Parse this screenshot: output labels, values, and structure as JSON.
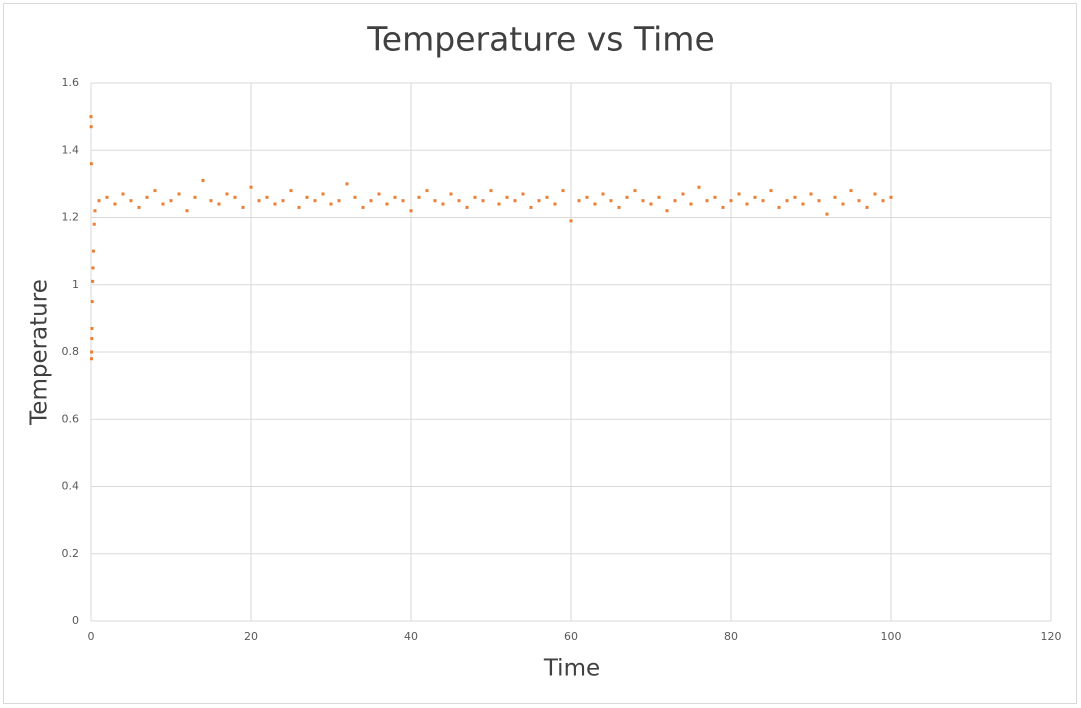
{
  "chart_data": {
    "type": "scatter",
    "title": "Temperature vs Time",
    "x_label": "Time",
    "y_label": "Temperature",
    "xlim": [
      0,
      120
    ],
    "xticks": [
      0,
      20,
      40,
      60,
      80,
      100,
      120
    ],
    "ylim": [
      0,
      1.6
    ],
    "yticks": [
      0,
      0.2,
      0.4,
      0.6,
      0.8,
      1,
      1.2,
      1.4,
      1.6
    ],
    "grid": true,
    "color": "#ed7d31",
    "x": [
      0,
      0.02,
      0.04,
      0.06,
      0.08,
      0.1,
      0.12,
      0.15,
      0.2,
      0.25,
      0.3,
      0.4,
      0.5,
      1,
      2,
      3,
      4,
      5,
      6,
      7,
      8,
      9,
      10,
      11,
      12,
      13,
      14,
      15,
      16,
      17,
      18,
      19,
      20,
      21,
      22,
      23,
      24,
      25,
      26,
      27,
      28,
      29,
      30,
      31,
      32,
      33,
      34,
      35,
      36,
      37,
      38,
      39,
      40,
      41,
      42,
      43,
      44,
      45,
      46,
      47,
      48,
      49,
      50,
      51,
      52,
      53,
      54,
      55,
      56,
      57,
      58,
      59,
      60,
      61,
      62,
      63,
      64,
      65,
      66,
      67,
      68,
      69,
      70,
      71,
      72,
      73,
      74,
      75,
      76,
      77,
      78,
      79,
      80,
      81,
      82,
      83,
      84,
      85,
      86,
      87,
      88,
      89,
      90,
      91,
      92,
      93,
      94,
      95,
      96,
      97,
      98,
      99,
      100
    ],
    "values": [
      1.5,
      1.47,
      1.36,
      0.78,
      0.8,
      0.84,
      0.87,
      0.95,
      1.01,
      1.05,
      1.1,
      1.18,
      1.22,
      1.25,
      1.26,
      1.24,
      1.27,
      1.25,
      1.23,
      1.26,
      1.28,
      1.24,
      1.25,
      1.27,
      1.22,
      1.26,
      1.31,
      1.25,
      1.24,
      1.27,
      1.26,
      1.23,
      1.29,
      1.25,
      1.26,
      1.24,
      1.25,
      1.28,
      1.23,
      1.26,
      1.25,
      1.27,
      1.24,
      1.25,
      1.3,
      1.26,
      1.23,
      1.25,
      1.27,
      1.24,
      1.26,
      1.25,
      1.22,
      1.26,
      1.28,
      1.25,
      1.24,
      1.27,
      1.25,
      1.23,
      1.26,
      1.25,
      1.28,
      1.24,
      1.26,
      1.25,
      1.27,
      1.23,
      1.25,
      1.26,
      1.24,
      1.28,
      1.19,
      1.25,
      1.26,
      1.24,
      1.27,
      1.25,
      1.23,
      1.26,
      1.28,
      1.25,
      1.24,
      1.26,
      1.22,
      1.25,
      1.27,
      1.24,
      1.29,
      1.25,
      1.26,
      1.23,
      1.25,
      1.27,
      1.24,
      1.26,
      1.25,
      1.28,
      1.23,
      1.25,
      1.26,
      1.24,
      1.27,
      1.25,
      1.21,
      1.26,
      1.24,
      1.28,
      1.25,
      1.23,
      1.27,
      1.25,
      1.26
    ]
  }
}
